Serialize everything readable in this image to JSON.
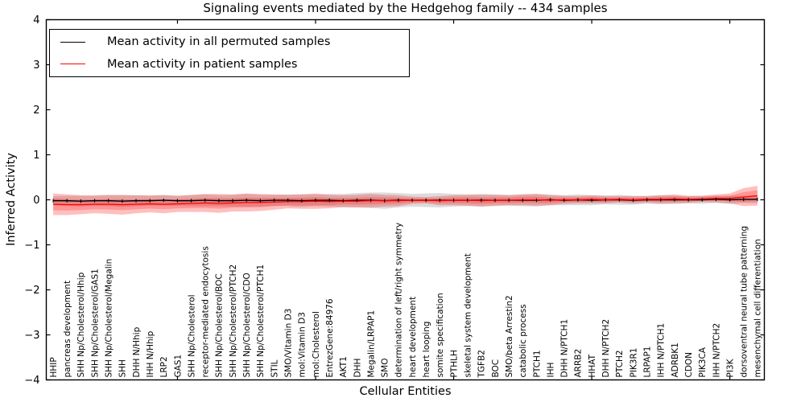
{
  "title": "Signaling events mediated by the Hedgehog family -- 434 samples",
  "axes": {
    "ylabel": "Inferred Activity",
    "xlabel": "Cellular Entities",
    "ytick_labels": [
      "4",
      "3",
      "2",
      "1",
      "0",
      "−1",
      "−2",
      "−3",
      "−4"
    ]
  },
  "legend": {
    "items": [
      {
        "label": "Mean activity in all permuted samples",
        "color": "#000000"
      },
      {
        "label": "Mean activity in patient samples",
        "color": "#ff0000"
      }
    ]
  },
  "chart_data": {
    "type": "line",
    "title": "Signaling events mediated by the Hedgehog family -- 434 samples",
    "xlabel": "Cellular Entities",
    "ylabel": "Inferred Activity",
    "ylim": [
      -4,
      4
    ],
    "grid": false,
    "legend_position": "upper left",
    "ytick_values": [
      4,
      3,
      2,
      1,
      0,
      -1,
      -2,
      -3,
      -4
    ],
    "x_major_ticks": [
      10,
      20,
      30,
      40,
      50
    ],
    "inner_band_ratio": 0.55,
    "categories": [
      "HHIP",
      "pancreas development",
      "SHH Np/Cholesterol/Hhip",
      "SHH Np/Cholesterol/GAS1",
      "SHH Np/Cholesterol/Megalin",
      "SHH",
      "DHH N/Hhip",
      "IHH N/Hhip",
      "LRP2",
      "GAS1",
      "SHH Np/Cholesterol",
      "receptor-mediated endocytosis",
      "SHH Np/Cholesterol/BOC",
      "SHH Np/Cholesterol/PTCH2",
      "SHH Np/Cholesterol/CDO",
      "SHH Np/Cholesterol/PTCH1",
      "STIL",
      "SMO/Vitamin D3",
      "mol:Vitamin D3",
      "mol:Cholesterol",
      "EntrezGene:84976",
      "AKT1",
      "DHH",
      "Megalin/LRPAP1",
      "SMO",
      "determination of left/right symmetry",
      "heart development",
      "heart looping",
      "somite specification",
      "PTHLH",
      "skeletal system development",
      "TGFB2",
      "BOC",
      "SMO/beta Arrestin2",
      "catabolic process",
      "PTCH1",
      "IHH",
      "DHH N/PTCH1",
      "ARRB2",
      "HHAT",
      "DHH N/PTCH2",
      "PTCH2",
      "PIK3R1",
      "LRPAP1",
      "IHH N/PTCH1",
      "ADRBK1",
      "CDON",
      "PIK3CA",
      "IHH N/PTCH2",
      "PI3K",
      "dorsoventral neural tube patterning",
      "mesenchymal cell differentiation"
    ],
    "series": [
      {
        "name": "Mean activity in all permuted samples",
        "color": "#000000",
        "band_color": "rgba(0,0,0,0.14)",
        "values": [
          -0.02,
          -0.02,
          -0.03,
          -0.02,
          -0.02,
          -0.03,
          -0.02,
          -0.02,
          -0.01,
          -0.02,
          -0.02,
          -0.01,
          -0.02,
          -0.02,
          -0.01,
          -0.02,
          -0.01,
          -0.01,
          -0.02,
          -0.01,
          -0.01,
          -0.02,
          -0.01,
          -0.01,
          -0.02,
          -0.01,
          -0.01,
          -0.01,
          -0.01,
          -0.01,
          -0.01,
          -0.01,
          -0.01,
          -0.01,
          -0.01,
          -0.01,
          0,
          -0.01,
          0,
          -0.01,
          0,
          0,
          -0.01,
          0,
          0,
          0,
          0,
          0,
          0.01,
          0,
          0.01,
          0.01
        ],
        "band_halfwidth": [
          0.1,
          0.11,
          0.12,
          0.11,
          0.12,
          0.13,
          0.12,
          0.11,
          0.12,
          0.11,
          0.12,
          0.13,
          0.12,
          0.13,
          0.14,
          0.13,
          0.12,
          0.13,
          0.14,
          0.13,
          0.14,
          0.15,
          0.16,
          0.17,
          0.18,
          0.16,
          0.14,
          0.15,
          0.16,
          0.14,
          0.13,
          0.14,
          0.13,
          0.12,
          0.13,
          0.14,
          0.12,
          0.11,
          0.12,
          0.11,
          0.1,
          0.11,
          0.1,
          0.09,
          0.1,
          0.09,
          0.08,
          0.09,
          0.08,
          0.09,
          0.08,
          0.09
        ]
      },
      {
        "name": "Mean activity in patient samples",
        "color": "#ff0000",
        "band_color": "rgba(255,0,0,0.25)",
        "inner_band_color": "rgba(255,0,0,0.22)",
        "values": [
          -0.1,
          -0.11,
          -0.11,
          -0.1,
          -0.1,
          -0.11,
          -0.1,
          -0.09,
          -0.1,
          -0.09,
          -0.08,
          -0.07,
          -0.08,
          -0.07,
          -0.06,
          -0.06,
          -0.05,
          -0.04,
          -0.04,
          -0.03,
          -0.04,
          -0.03,
          -0.03,
          -0.02,
          -0.02,
          -0.02,
          -0.01,
          -0.01,
          -0.02,
          -0.01,
          -0.01,
          -0.02,
          -0.01,
          -0.01,
          0,
          0,
          -0.01,
          0,
          0,
          0.01,
          0,
          0.01,
          0,
          0.01,
          0.01,
          0.02,
          0.01,
          0.02,
          0.03,
          0.03,
          0.06,
          0.09
        ],
        "band_halfwidth": [
          0.24,
          0.23,
          0.21,
          0.2,
          0.21,
          0.22,
          0.2,
          0.19,
          0.2,
          0.18,
          0.19,
          0.2,
          0.21,
          0.19,
          0.2,
          0.19,
          0.17,
          0.15,
          0.16,
          0.17,
          0.15,
          0.13,
          0.14,
          0.15,
          0.13,
          0.12,
          0.08,
          0.07,
          0.1,
          0.11,
          0.12,
          0.13,
          0.12,
          0.11,
          0.12,
          0.13,
          0.11,
          0.09,
          0.08,
          0.09,
          0.08,
          0.07,
          0.08,
          0.07,
          0.09,
          0.1,
          0.08,
          0.07,
          0.09,
          0.11,
          0.2,
          0.22
        ]
      }
    ]
  }
}
